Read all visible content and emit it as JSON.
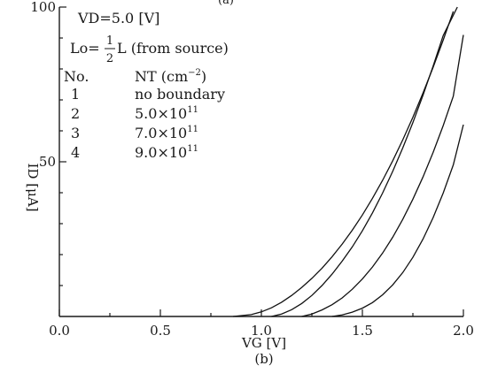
{
  "chart_data": {
    "type": "line",
    "xlabel": "VG [V]",
    "ylabel": "ID [μA]",
    "caption": "(b)",
    "top_fragment": "(a)",
    "xlim": [
      0.0,
      2.0
    ],
    "ylim": [
      0,
      100
    ],
    "x_ticks": [
      0.0,
      0.5,
      1.0,
      1.5,
      2.0
    ],
    "x_tick_labels": [
      "0.0",
      "0.5",
      "1.0",
      "1.5",
      "2.0"
    ],
    "x_minor_ticks": [
      0.25,
      0.75,
      1.25,
      1.75
    ],
    "y_ticks": [
      50,
      100
    ],
    "y_tick_labels": [
      "50",
      "100"
    ],
    "y_minor_ticks": [
      10,
      20,
      30,
      40,
      60,
      70,
      80,
      90
    ],
    "conditions": {
      "vd": "VD=5.0 [V]",
      "lo_prefix": "Lo=",
      "lo_num": "1",
      "lo_den": "2",
      "lo_suffix": "L (from source)"
    },
    "legend_header": {
      "no": "No.",
      "nt_main": "NT (cm",
      "nt_sup": "−2",
      "nt_close": ")"
    },
    "legend": [
      {
        "no": "1",
        "text": "no boundary",
        "mant": "",
        "exp": ""
      },
      {
        "no": "2",
        "text": "",
        "mant": "5.0×10",
        "exp": "11"
      },
      {
        "no": "3",
        "text": "",
        "mant": "7.0×10",
        "exp": "11"
      },
      {
        "no": "4",
        "text": "",
        "mant": "9.0×10",
        "exp": "11"
      }
    ],
    "series": [
      {
        "name": "1",
        "x": [
          0.86,
          0.95,
          1.0,
          1.05,
          1.1,
          1.15,
          1.2,
          1.25,
          1.3,
          1.35,
          1.4,
          1.45,
          1.5,
          1.55,
          1.6,
          1.65,
          1.7,
          1.75,
          1.8,
          1.85,
          1.9,
          1.95
        ],
        "y": [
          0,
          0.6,
          1.5,
          2.8,
          4.6,
          6.8,
          9.4,
          12.3,
          15.6,
          19.3,
          23.4,
          27.9,
          32.8,
          38.2,
          44.0,
          50.3,
          57.1,
          64.4,
          72.2,
          80.5,
          89.3,
          98.6
        ]
      },
      {
        "name": "2",
        "x": [
          1.05,
          1.1,
          1.15,
          1.2,
          1.25,
          1.3,
          1.35,
          1.4,
          1.45,
          1.5,
          1.55,
          1.6,
          1.65,
          1.7,
          1.75,
          1.8,
          1.85,
          1.9,
          1.97
        ],
        "y": [
          0,
          0.8,
          2.2,
          4.2,
          6.8,
          10.0,
          13.7,
          17.9,
          22.5,
          27.7,
          33.5,
          39.9,
          46.9,
          54.5,
          62.7,
          71.5,
          80.9,
          90.8,
          100
        ]
      },
      {
        "name": "3",
        "x": [
          1.2,
          1.25,
          1.3,
          1.35,
          1.4,
          1.45,
          1.5,
          1.55,
          1.6,
          1.65,
          1.7,
          1.75,
          1.8,
          1.85,
          1.9,
          1.95,
          2.0
        ],
        "y": [
          0,
          0.8,
          2.1,
          3.8,
          6.0,
          8.8,
          12.1,
          16.0,
          20.5,
          25.6,
          31.4,
          37.9,
          45.1,
          53.0,
          61.7,
          71.2,
          91.0
        ]
      },
      {
        "name": "4",
        "x": [
          1.35,
          1.4,
          1.45,
          1.5,
          1.55,
          1.6,
          1.65,
          1.7,
          1.75,
          1.8,
          1.85,
          1.9,
          1.95,
          2.0
        ],
        "y": [
          0,
          0.5,
          1.4,
          2.7,
          4.5,
          7.0,
          10.2,
          14.2,
          19.1,
          25.0,
          31.9,
          39.9,
          49.0,
          62.0
        ]
      }
    ],
    "grid": false,
    "legend_placement": "top-left"
  }
}
